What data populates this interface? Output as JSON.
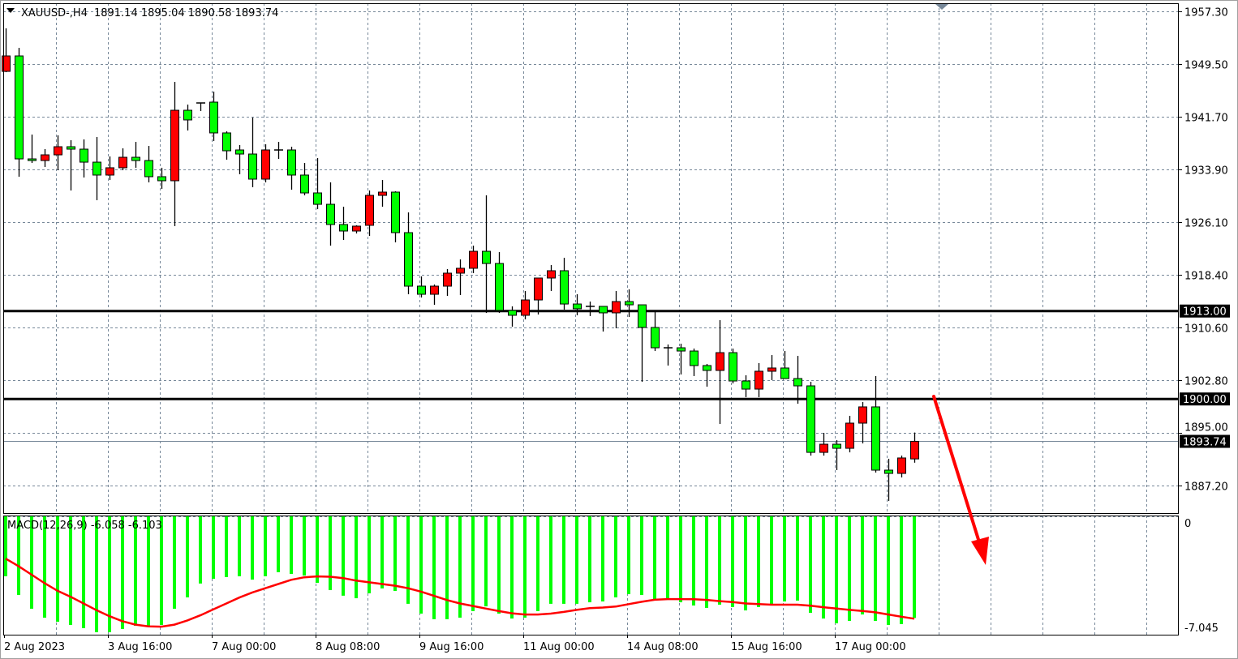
{
  "chart_data": {
    "type": "candlestick",
    "symbol_label": "XAUUSD-,H4",
    "header_ohlc": "1891.14 1895.04 1890.58 1893.74",
    "ylim": [
      1883.13,
      1958.5
    ],
    "y_ticks": [
      "1957.30",
      "1949.50",
      "1941.70",
      "1933.90",
      "1926.10",
      "1918.40",
      "1910.60",
      "1902.80",
      "1895.00",
      "1887.20"
    ],
    "x_labels": [
      {
        "index": 0,
        "label": "2 Aug 2023"
      },
      {
        "index": 8,
        "label": "3 Aug 16:00"
      },
      {
        "index": 16,
        "label": "7 Aug 00:00"
      },
      {
        "index": 24,
        "label": "8 Aug 08:00"
      },
      {
        "index": 32,
        "label": "9 Aug 16:00"
      },
      {
        "index": 40,
        "label": "11 Aug 00:00"
      },
      {
        "index": 48,
        "label": "14 Aug 08:00"
      },
      {
        "index": 56,
        "label": "15 Aug 16:00"
      },
      {
        "index": 64,
        "label": "17 Aug 00:00"
      }
    ],
    "grid": true,
    "candle_fields": [
      "open",
      "high",
      "low",
      "close"
    ],
    "candles": [
      [
        1948.43,
        1954.79,
        1948.31,
        1950.71
      ],
      [
        1950.71,
        1951.91,
        1932.86,
        1935.49
      ],
      [
        1935.49,
        1939.09,
        1934.89,
        1935.25
      ],
      [
        1935.25,
        1936.93,
        1934.29,
        1936.09
      ],
      [
        1936.09,
        1938.97,
        1933.82,
        1937.29
      ],
      [
        1937.29,
        1938.25,
        1930.82,
        1936.93
      ],
      [
        1936.93,
        1938.37,
        1932.74,
        1935.01
      ],
      [
        1935.01,
        1938.73,
        1929.38,
        1933.1
      ],
      [
        1933.1,
        1935.85,
        1932.38,
        1934.18
      ],
      [
        1934.18,
        1937.05,
        1933.82,
        1935.73
      ],
      [
        1935.73,
        1938.01,
        1934.18,
        1935.25
      ],
      [
        1935.25,
        1937.41,
        1932.02,
        1932.86
      ],
      [
        1932.86,
        1934.18,
        1931.06,
        1932.26
      ],
      [
        1932.26,
        1946.88,
        1925.55,
        1942.68
      ],
      [
        1942.68,
        1943.52,
        1939.69,
        1941.25
      ],
      [
        1943.76,
        1943.76,
        1942.56,
        1943.64
      ],
      [
        1943.88,
        1945.44,
        1938.13,
        1939.33
      ],
      [
        1939.33,
        1939.57,
        1935.37,
        1936.69
      ],
      [
        1936.81,
        1937.53,
        1933.22,
        1936.21
      ],
      [
        1936.21,
        1941.6,
        1931.3,
        1932.5
      ],
      [
        1932.5,
        1937.65,
        1932.02,
        1936.81
      ],
      [
        1936.81,
        1938.01,
        1935.49,
        1936.75
      ],
      [
        1936.81,
        1937.29,
        1930.94,
        1933.1
      ],
      [
        1933.1,
        1934.89,
        1930.1,
        1930.46
      ],
      [
        1930.46,
        1935.61,
        1928.06,
        1928.78
      ],
      [
        1928.78,
        1932.02,
        1922.67,
        1925.79
      ],
      [
        1925.79,
        1928.42,
        1923.51,
        1924.83
      ],
      [
        1924.83,
        1925.67,
        1924.47,
        1925.55
      ],
      [
        1925.67,
        1930.82,
        1924.11,
        1930.1
      ],
      [
        1930.1,
        1932.38,
        1928.42,
        1930.58
      ],
      [
        1930.58,
        1930.7,
        1923.15,
        1924.59
      ],
      [
        1924.59,
        1927.58,
        1915.48,
        1916.68
      ],
      [
        1916.68,
        1918.12,
        1915.0,
        1915.48
      ],
      [
        1915.48,
        1916.92,
        1913.92,
        1916.68
      ],
      [
        1916.68,
        1919.2,
        1915.24,
        1918.6
      ],
      [
        1918.6,
        1920.63,
        1915.36,
        1919.32
      ],
      [
        1919.32,
        1922.67,
        1918.6,
        1921.83
      ],
      [
        1921.83,
        1930.1,
        1912.73,
        1920.03
      ],
      [
        1920.03,
        1921.71,
        1912.73,
        1913.09
      ],
      [
        1913.09,
        1913.69,
        1910.69,
        1912.37
      ],
      [
        1912.37,
        1915.96,
        1911.77,
        1914.64
      ],
      [
        1914.64,
        1917.88,
        1912.49,
        1917.88
      ],
      [
        1917.88,
        1919.8,
        1915.96,
        1918.96
      ],
      [
        1918.96,
        1920.87,
        1913.21,
        1914.04
      ],
      [
        1914.04,
        1915.48,
        1912.37,
        1913.33
      ],
      [
        1913.69,
        1914.4,
        1912.25,
        1913.63
      ],
      [
        1913.69,
        1913.69,
        1909.97,
        1912.73
      ],
      [
        1912.73,
        1915.96,
        1910.45,
        1914.4
      ],
      [
        1914.4,
        1916.2,
        1912.13,
        1913.92
      ],
      [
        1913.92,
        1913.92,
        1902.54,
        1910.57
      ],
      [
        1910.57,
        1913.09,
        1907.09,
        1907.57
      ],
      [
        1907.57,
        1908.05,
        1904.94,
        1907.51
      ],
      [
        1907.57,
        1908.17,
        1903.62,
        1907.09
      ],
      [
        1907.09,
        1907.45,
        1903.38,
        1904.94
      ],
      [
        1904.94,
        1905.18,
        1901.82,
        1904.22
      ],
      [
        1904.22,
        1911.65,
        1896.31,
        1906.85
      ],
      [
        1906.85,
        1907.45,
        1902.3,
        1902.66
      ],
      [
        1902.66,
        1903.5,
        1900.26,
        1901.46
      ],
      [
        1901.46,
        1905.3,
        1900.26,
        1904.1
      ],
      [
        1904.1,
        1906.49,
        1902.78,
        1904.58
      ],
      [
        1904.58,
        1907.09,
        1903.02,
        1903.02
      ],
      [
        1903.02,
        1906.37,
        1899.3,
        1901.94
      ],
      [
        1901.94,
        1902.54,
        1891.63,
        1892.11
      ],
      [
        1892.11,
        1894.99,
        1891.63,
        1893.31
      ],
      [
        1893.31,
        1893.91,
        1889.48,
        1892.71
      ],
      [
        1892.71,
        1897.51,
        1892.11,
        1896.43
      ],
      [
        1896.43,
        1899.54,
        1893.43,
        1898.83
      ],
      [
        1898.83,
        1903.38,
        1889.12,
        1889.48
      ],
      [
        1889.48,
        1891.16,
        1884.93,
        1889.0
      ],
      [
        1889.0,
        1891.63,
        1888.4,
        1891.28
      ],
      [
        1891.14,
        1895.04,
        1890.58,
        1893.74
      ]
    ],
    "horizontal_lines": [
      {
        "value": 1913.0,
        "label": "1913.00"
      },
      {
        "value": 1900.0,
        "label": "1900.00"
      }
    ],
    "current_price": {
      "value": 1893.74,
      "label": "1893.74"
    },
    "macd": {
      "label": "MACD(12,26,9) -6.058 -6.103",
      "ylim": [
        -7.045,
        0
      ],
      "y_ticks": [
        "0",
        "-7.045"
      ],
      "histogram": [
        -3.59,
        -4.7,
        -5.51,
        -6.04,
        -6.28,
        -6.47,
        -6.66,
        -6.9,
        -6.9,
        -6.71,
        -6.52,
        -6.52,
        -6.47,
        -5.51,
        -4.84,
        -4.02,
        -3.74,
        -3.64,
        -3.59,
        -3.79,
        -3.59,
        -3.35,
        -3.45,
        -3.55,
        -3.98,
        -4.41,
        -4.74,
        -4.89,
        -4.6,
        -4.31,
        -4.46,
        -5.22,
        -5.8,
        -6.13,
        -6.13,
        -6.04,
        -5.65,
        -5.37,
        -5.8,
        -6.09,
        -6.04,
        -5.65,
        -5.22,
        -5.22,
        -5.22,
        -5.13,
        -5.08,
        -4.84,
        -4.65,
        -4.7,
        -4.94,
        -4.94,
        -5.13,
        -5.32,
        -5.46,
        -5.27,
        -5.41,
        -5.61,
        -5.41,
        -5.22,
        -5.08,
        -5.03,
        -5.75,
        -6.09,
        -6.37,
        -6.23,
        -5.85,
        -6.23,
        -6.47,
        -6.42,
        -6.058
      ],
      "signal": [
        -2.55,
        -3.0,
        -3.5,
        -4.0,
        -4.45,
        -4.8,
        -5.2,
        -5.6,
        -5.95,
        -6.25,
        -6.45,
        -6.55,
        -6.57,
        -6.45,
        -6.2,
        -5.9,
        -5.55,
        -5.2,
        -4.85,
        -4.55,
        -4.3,
        -4.05,
        -3.8,
        -3.65,
        -3.6,
        -3.62,
        -3.7,
        -3.85,
        -3.95,
        -4.05,
        -4.15,
        -4.3,
        -4.5,
        -4.75,
        -5.0,
        -5.2,
        -5.35,
        -5.5,
        -5.65,
        -5.78,
        -5.85,
        -5.85,
        -5.8,
        -5.7,
        -5.58,
        -5.48,
        -5.44,
        -5.38,
        -5.24,
        -5.1,
        -4.98,
        -4.94,
        -4.94,
        -4.95,
        -4.99,
        -5.06,
        -5.12,
        -5.2,
        -5.24,
        -5.27,
        -5.27,
        -5.27,
        -5.33,
        -5.42,
        -5.5,
        -5.58,
        -5.64,
        -5.72,
        -5.85,
        -5.98,
        -6.103
      ]
    },
    "colors": {
      "bull_candle": "#ff0000",
      "bear_candle": "#00ff00",
      "candle_outline": "#000000",
      "grid": "#778899",
      "hline": "#000000",
      "current_price_line": "#778899",
      "macd_histogram": "#00ff00",
      "macd_signal": "#ff0000",
      "arrow": "#ff0000"
    }
  }
}
